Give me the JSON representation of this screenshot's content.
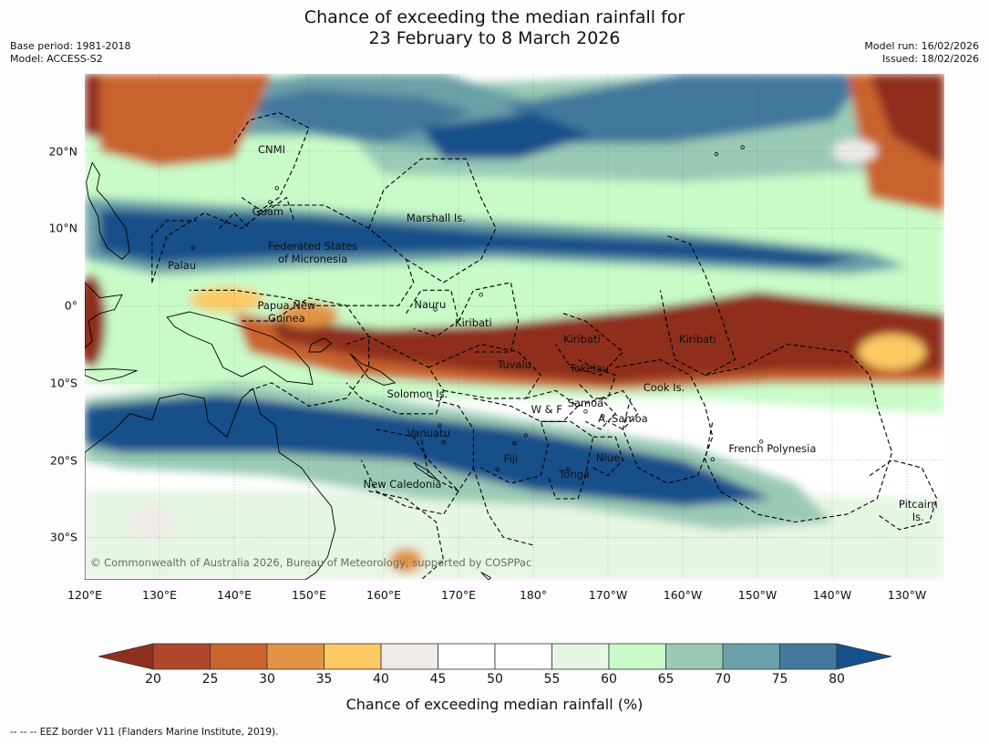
{
  "title_line1": "Chance of exceeding the median rainfall for",
  "title_line2": "23 February to 8 March 2026",
  "base_period": "Base period: 1981-2018",
  "model": "Model: ACCESS-S2",
  "model_run": "Model run: 16/02/2026",
  "issued": "Issued: 18/02/2026",
  "credit": "© Commonwealth of Australia 2026, Bureau of Meteorology, supported by COSPPac",
  "lat_ticks": [
    "20°N",
    "10°N",
    "0°",
    "10°S",
    "20°S",
    "30°S"
  ],
  "lon_ticks": [
    "120°E",
    "130°E",
    "140°E",
    "150°E",
    "160°E",
    "170°E",
    "180°",
    "170°W",
    "160°W",
    "150°W",
    "140°W",
    "130°W"
  ],
  "regions": [
    {
      "text": "CNMI",
      "lon": 145.0,
      "lat": 20.2
    },
    {
      "text": "Guam",
      "lon": 144.5,
      "lat": 12.2
    },
    {
      "text": "Marshall Is.",
      "lon": 167.0,
      "lat": 11.3
    },
    {
      "text": "Federated States\nof Micronesia",
      "lon": 150.5,
      "lat": 6.9
    },
    {
      "text": "Palau",
      "lon": 133.0,
      "lat": 5.2
    },
    {
      "text": "Papua New\nGuinea",
      "lon": 147.0,
      "lat": -0.8
    },
    {
      "text": "Nauru",
      "lon": 166.2,
      "lat": 0.1
    },
    {
      "text": "Kiribati",
      "lon": 172.0,
      "lat": -2.2
    },
    {
      "text": "Kiribati",
      "lon": 186.5,
      "lat": -4.3
    },
    {
      "text": "Kiribati",
      "lon": 202.0,
      "lat": -4.3
    },
    {
      "text": "Tuvalu",
      "lon": 177.5,
      "lat": -7.7
    },
    {
      "text": "Tokelau",
      "lon": 187.5,
      "lat": -8.1
    },
    {
      "text": "Cook Is.",
      "lon": 197.5,
      "lat": -10.6
    },
    {
      "text": "Solomon Is.",
      "lon": 164.5,
      "lat": -11.4
    },
    {
      "text": "W & F",
      "lon": 181.8,
      "lat": -13.4
    },
    {
      "text": "Samoa",
      "lon": 187.0,
      "lat": -12.6
    },
    {
      "text": "A. Samoa",
      "lon": 192.0,
      "lat": -14.6
    },
    {
      "text": "Vanuatu",
      "lon": 166.0,
      "lat": -16.5
    },
    {
      "text": "French Polynesia",
      "lon": 212.0,
      "lat": -18.5
    },
    {
      "text": "Fiji",
      "lon": 177.0,
      "lat": -19.8
    },
    {
      "text": "Niue",
      "lon": 190.0,
      "lat": -19.7
    },
    {
      "text": "Tonga",
      "lon": 185.5,
      "lat": -21.8
    },
    {
      "text": "New Caledonia",
      "lon": 162.5,
      "lat": -23.1
    },
    {
      "text": "Pitcairn\nIs.",
      "lon": 231.5,
      "lat": -26.5
    }
  ],
  "colorbar": {
    "label": "Chance of exceeding median rainfall (%)",
    "ticks": [
      "20",
      "25",
      "30",
      "35",
      "40",
      "45",
      "50",
      "55",
      "60",
      "65",
      "70",
      "75",
      "80"
    ],
    "colors": [
      "#8f2f1e",
      "#b0472a",
      "#c9642f",
      "#e29345",
      "#fcc964",
      "#eeebe6",
      "#ffffff",
      "#ffffff",
      "#e6f5e4",
      "#c8fbc8",
      "#9acab5",
      "#6ba0a8",
      "#43789c",
      "#15508a"
    ]
  },
  "footnote": "--  --  -- EEZ border V11 (Flanders Marine Institute, 2019).",
  "map_data": {
    "lon_range": [
      120,
      235
    ],
    "lat_range": [
      -35.5,
      30
    ],
    "anomaly_bands": [
      {
        "category": "above",
        "lat_range": [
          5,
          14
        ],
        "lon_range": [
          125,
          225
        ],
        "color": "#15508a"
      },
      {
        "category": "below",
        "lat_range": [
          -10,
          0
        ],
        "lon_range": [
          150,
          235
        ],
        "color": "#8f2f1e"
      },
      {
        "category": "above",
        "lat_range": [
          -26,
          -12
        ],
        "lon_range": [
          120,
          210
        ],
        "color": "#15508a"
      },
      {
        "category": "below",
        "lat_range": [
          18,
          30
        ],
        "lon_range": [
          120,
          145
        ],
        "color": "#8f2f1e"
      },
      {
        "category": "below",
        "lat_range": [
          15,
          30
        ],
        "lon_range": [
          222,
          235
        ],
        "color": "#b0472a"
      }
    ]
  }
}
